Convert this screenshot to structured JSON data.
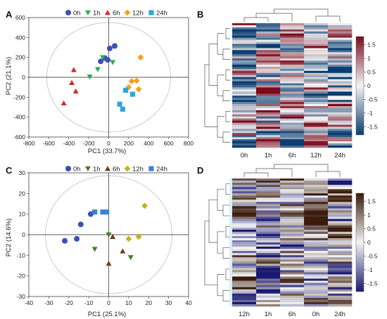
{
  "chart_data": [
    {
      "panel": "A",
      "type": "scatter",
      "xlabel": "PC1 (33.7%)",
      "ylabel": "PC2 (21.1%)",
      "xlim": [
        -800,
        800
      ],
      "ylim": [
        -600,
        600
      ],
      "xticks": [
        -800,
        -600,
        -400,
        -200,
        0,
        200,
        400,
        600,
        800
      ],
      "yticks": [
        -600,
        -400,
        -200,
        0,
        200,
        400,
        600
      ],
      "legend_position": "top",
      "confidence_ellipse": true,
      "series": [
        {
          "name": "0h",
          "color": "#3f4fb5",
          "marker": "circle",
          "points": [
            [
              -80,
              160
            ],
            [
              -40,
              195
            ],
            [
              10,
              290
            ],
            [
              60,
              315
            ],
            [
              -10,
              175
            ]
          ]
        },
        {
          "name": "1h",
          "color": "#2eab52",
          "marker": "triangle-down",
          "points": [
            [
              -190,
              5
            ],
            [
              -110,
              80
            ],
            [
              40,
              150
            ],
            [
              -60,
              200
            ]
          ]
        },
        {
          "name": "6h",
          "color": "#d42a2a",
          "marker": "triangle-up",
          "points": [
            [
              -350,
              75
            ],
            [
              -370,
              -55
            ],
            [
              -330,
              -140
            ],
            [
              -450,
              -260
            ]
          ]
        },
        {
          "name": "12h",
          "color": "#f5a020",
          "marker": "diamond",
          "points": [
            [
              320,
              200
            ],
            [
              230,
              -40
            ],
            [
              280,
              -35
            ],
            [
              200,
              -100
            ],
            [
              300,
              -120
            ]
          ]
        },
        {
          "name": "24h",
          "color": "#29a8e0",
          "marker": "square",
          "points": [
            [
              170,
              -130
            ],
            [
              240,
              -170
            ],
            [
              110,
              -270
            ],
            [
              140,
              -320
            ]
          ]
        }
      ]
    },
    {
      "panel": "B",
      "type": "heatmap",
      "columns": [
        "0h",
        "1h",
        "6h",
        "12h",
        "24h"
      ],
      "colorbar_ticks": [
        1.5,
        1,
        0.5,
        0,
        -0.5,
        -1,
        -1.5
      ],
      "colorbar_range": [
        -1.8,
        1.8
      ],
      "colors": {
        "high": "#7a0a1c",
        "mid": "#f4f4f4",
        "low": "#0a3c70"
      }
    },
    {
      "panel": "C",
      "type": "scatter",
      "xlabel": "PC1 (25.1%)",
      "ylabel": "PC2 (14.6%)",
      "xlim": [
        -40,
        40
      ],
      "ylim": [
        -30,
        30
      ],
      "xticks": [
        -40,
        -30,
        -20,
        -10,
        0,
        10,
        20,
        30,
        40
      ],
      "yticks": [
        -30,
        -20,
        -10,
        0,
        10,
        20,
        30
      ],
      "legend_position": "top",
      "confidence_ellipse": true,
      "series": [
        {
          "name": "0h",
          "color": "#3f4fb5",
          "marker": "circle",
          "points": [
            [
              -22,
              -3
            ],
            [
              -16,
              -2
            ],
            [
              -14,
              5
            ],
            [
              -9,
              10
            ]
          ]
        },
        {
          "name": "1h",
          "color": "#4b7a2e",
          "marker": "triangle-down",
          "points": [
            [
              -7,
              -7
            ],
            [
              0,
              0
            ],
            [
              11,
              -11
            ]
          ]
        },
        {
          "name": "6h",
          "color": "#6b3f1a",
          "marker": "triangle-up",
          "points": [
            [
              0,
              -14
            ],
            [
              2,
              -1
            ],
            [
              7,
              -8
            ]
          ]
        },
        {
          "name": "12h",
          "color": "#c4b218",
          "marker": "diamond",
          "points": [
            [
              18,
              14
            ],
            [
              10,
              -2
            ],
            [
              15,
              -1
            ]
          ]
        },
        {
          "name": "24h",
          "color": "#3b82d8",
          "marker": "square",
          "points": [
            [
              -7,
              11
            ],
            [
              -3,
              11
            ],
            [
              -1,
              11
            ]
          ]
        }
      ]
    },
    {
      "panel": "D",
      "type": "heatmap",
      "columns": [
        "12h",
        "1h",
        "6h",
        "0h",
        "24h"
      ],
      "colorbar_ticks": [
        1.5,
        1,
        0.5,
        0,
        -0.5,
        -1,
        -1.5
      ],
      "colorbar_range": [
        -1.8,
        1.8
      ],
      "colors": {
        "high": "#3a1a0a",
        "mid": "#f4f4f4",
        "low": "#181870"
      }
    }
  ]
}
